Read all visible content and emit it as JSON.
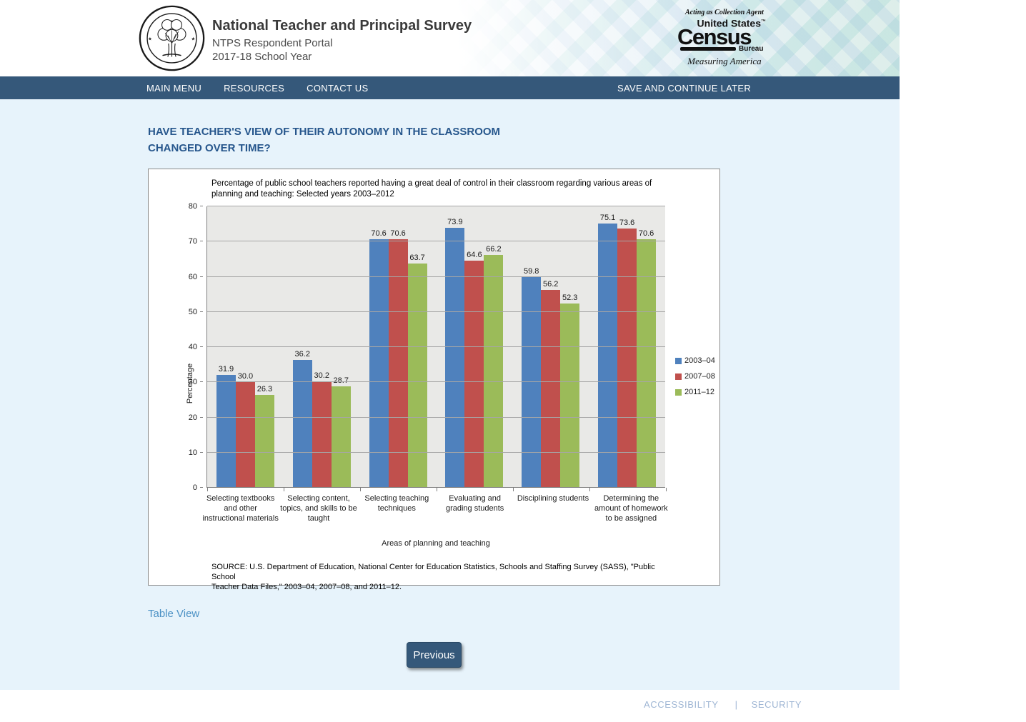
{
  "header": {
    "title": "National Teacher and Principal Survey",
    "subtitle1": "NTPS Respondent Portal",
    "subtitle2": "2017-18 School Year",
    "census": {
      "tagline": "Acting as Collection Agent",
      "united_states": "United States",
      "tm": "™",
      "census": "Census",
      "bureau": "Bureau",
      "motto": "Measuring America"
    }
  },
  "nav": {
    "items": [
      {
        "label": "MAIN MENU"
      },
      {
        "label": "RESOURCES"
      },
      {
        "label": "CONTACT US"
      }
    ],
    "save_label": "SAVE AND CONTINUE LATER",
    "bar_color": "#35587a"
  },
  "page": {
    "heading_line1": "HAVE TEACHER'S VIEW OF THEIR AUTONOMY IN THE CLASSROOM",
    "heading_line2": "CHANGED OVER TIME?",
    "table_view_link": "Table View",
    "previous_button": "Previous",
    "heading_color": "#26568c",
    "background_color": "#e7f3fb"
  },
  "chart_data": {
    "type": "bar",
    "title": "Percentage of public school teachers reported having a great deal of control in their classroom regarding various areas of planning and teaching: Selected years 2003–2012",
    "categories": [
      "Selecting textbooks\nand other\ninstructional materials",
      "Selecting content,\ntopics, and skills to be\ntaught",
      "Selecting teaching\ntechniques",
      "Evaluating and\ngrading students",
      "Disciplining students",
      "Determining the\namount of homework\nto be assigned"
    ],
    "series": [
      {
        "name": "2003–04",
        "color": "#4f81bd",
        "values": [
          31.9,
          36.2,
          70.6,
          73.9,
          59.8,
          75.1
        ]
      },
      {
        "name": "2007–08",
        "color": "#c0504d",
        "values": [
          30.0,
          30.2,
          70.6,
          64.6,
          56.2,
          73.6
        ]
      },
      {
        "name": "2011–12",
        "color": "#9bbb59",
        "values": [
          26.3,
          28.7,
          63.7,
          66.2,
          52.3,
          70.6
        ]
      }
    ],
    "xlabel": "Areas of planning and teaching",
    "ylabel": "Percentage",
    "ylim": [
      0,
      80
    ],
    "yticks": [
      0,
      10,
      20,
      30,
      40,
      50,
      60,
      70,
      80
    ],
    "grid": true,
    "legend_position": "right",
    "plot_background": "#e9e9e7",
    "source_line1": "SOURCE: U.S. Department of Education, National Center for Education Statistics, Schools and Staffing Survey (SASS), \"Public School",
    "source_line2": "Teacher Data Files,\" 2003–04, 2007–08, and 2011–12."
  },
  "footer": {
    "links": [
      "ACCESSIBILITY",
      "SECURITY"
    ],
    "separator": "|"
  }
}
